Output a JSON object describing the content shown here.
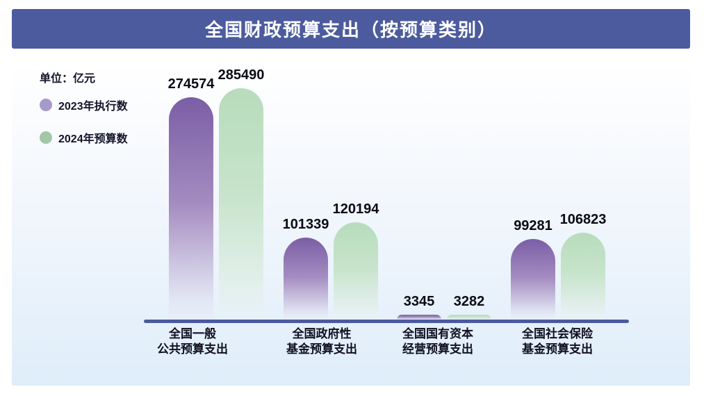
{
  "page_title": "全国财政预算支出（按预算类别）",
  "legend": {
    "unit_label": "单位：亿元",
    "items": [
      {
        "label": "2023年执行数",
        "color": "#a899cb"
      },
      {
        "label": "2024年预算数",
        "color": "#a3c7a7"
      }
    ]
  },
  "colors": {
    "header_bg": "#4c5b9e",
    "axis_line": "#4a5a9e",
    "bar_2023_top": "#7b5ea6",
    "bar_2024_top": "#b7dcbc",
    "card_bottom": "#dfedfa"
  },
  "chart_data": {
    "type": "bar",
    "title": "全国财政预算支出（按预算类别）",
    "unit": "亿元",
    "categories": [
      "全国一般\n公共预算支出",
      "全国政府性\n基金预算支出",
      "全国国有资本\n经营预算支出",
      "全国社会保险\n基金预算支出"
    ],
    "series": [
      {
        "name": "2023年执行数",
        "key": "s2023",
        "values": [
          274574,
          101339,
          3345,
          99281
        ]
      },
      {
        "name": "2024年预算数",
        "key": "s2024",
        "values": [
          285490,
          120194,
          3282,
          106823
        ]
      }
    ],
    "ylim": [
      0,
      300000
    ],
    "grid": false,
    "legend_position": "top-left",
    "value_labels": true
  }
}
